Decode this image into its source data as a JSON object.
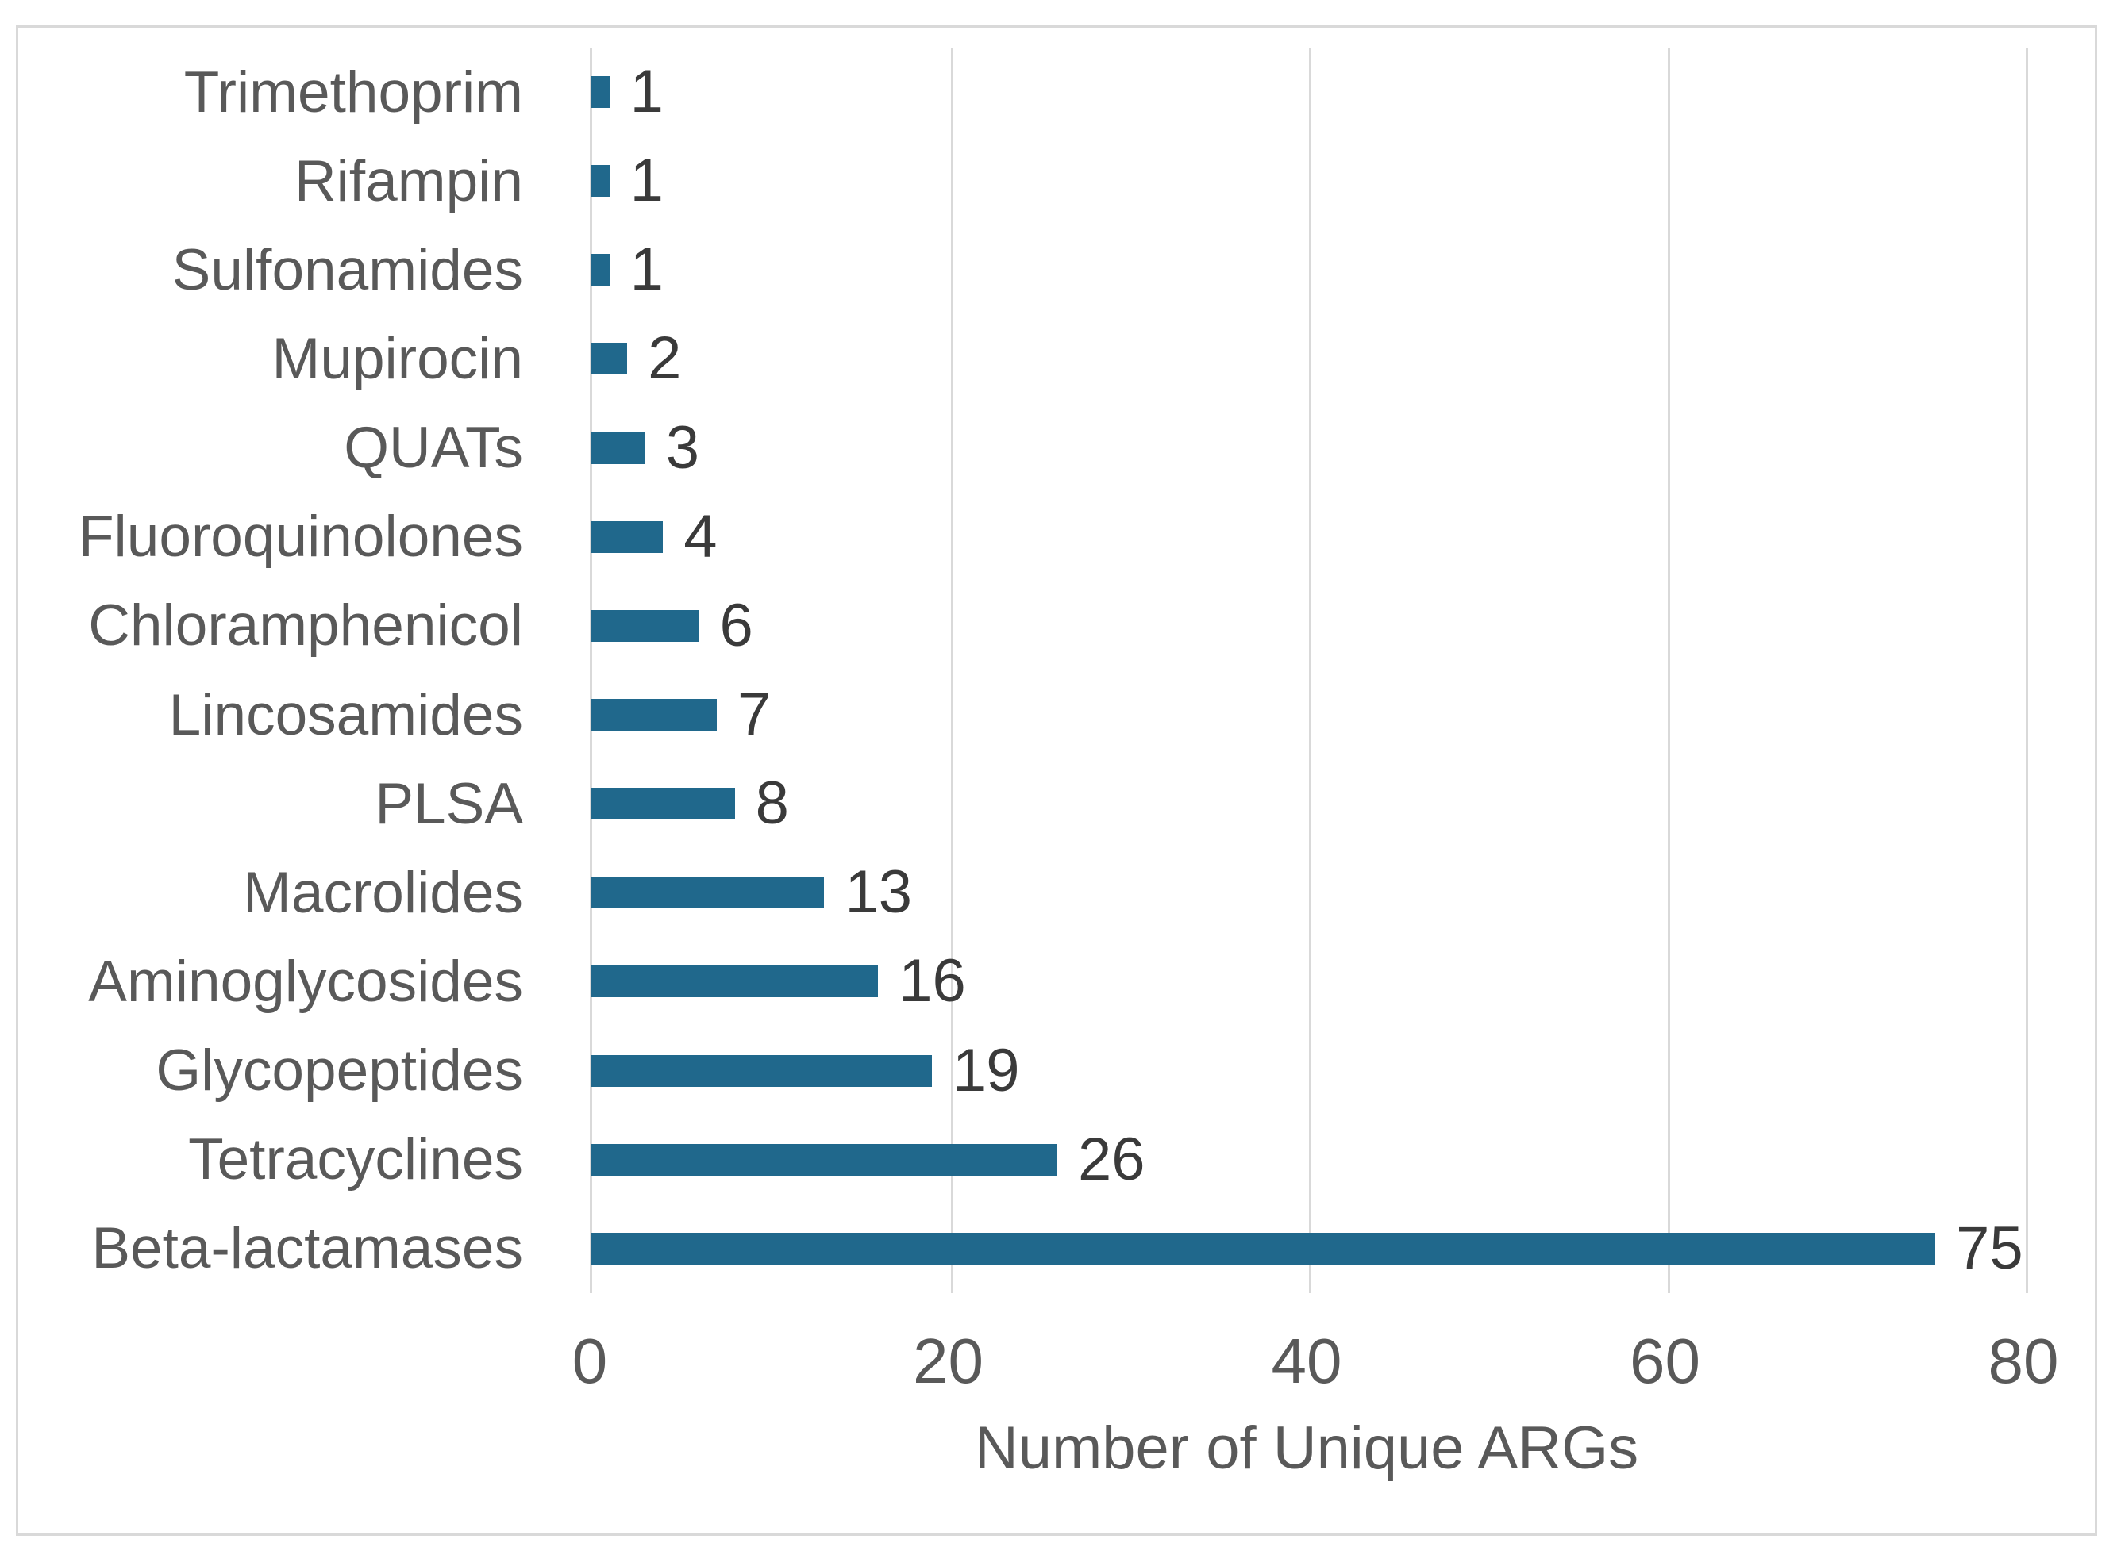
{
  "chart_data": {
    "type": "bar",
    "orientation": "horizontal",
    "title": "",
    "xlabel": "Number of Unique ARGs",
    "ylabel": "",
    "categories": [
      "Trimethoprim",
      "Rifampin",
      "Sulfonamides",
      "Mupirocin",
      "QUATs",
      "Fluoroquinolones",
      "Chloramphenicol",
      "Lincosamides",
      "PLSA",
      "Macrolides",
      "Aminoglycosides",
      "Glycopeptides",
      "Tetracyclines",
      "Beta-lactamases"
    ],
    "values": [
      1,
      1,
      1,
      2,
      3,
      4,
      6,
      7,
      8,
      13,
      16,
      19,
      26,
      75
    ],
    "data_labels": [
      "1",
      "1",
      "1",
      "2",
      "3",
      "4",
      "6",
      "7",
      "8",
      "13",
      "16",
      "19",
      "26",
      "75"
    ],
    "xticks": [
      "0",
      "20",
      "40",
      "60",
      "80"
    ],
    "xlim": [
      0,
      80
    ],
    "grid": "vertical-gridlines-on",
    "legend": "none",
    "colors": {
      "bar": "#20688c",
      "category_label": "#595959",
      "value_label": "#3a3a3a",
      "tick_label": "#595959",
      "axis_title": "#595959",
      "gridline": "#d9d9d9",
      "frame_border": "#d9d9d9",
      "background": "#ffffff"
    }
  }
}
